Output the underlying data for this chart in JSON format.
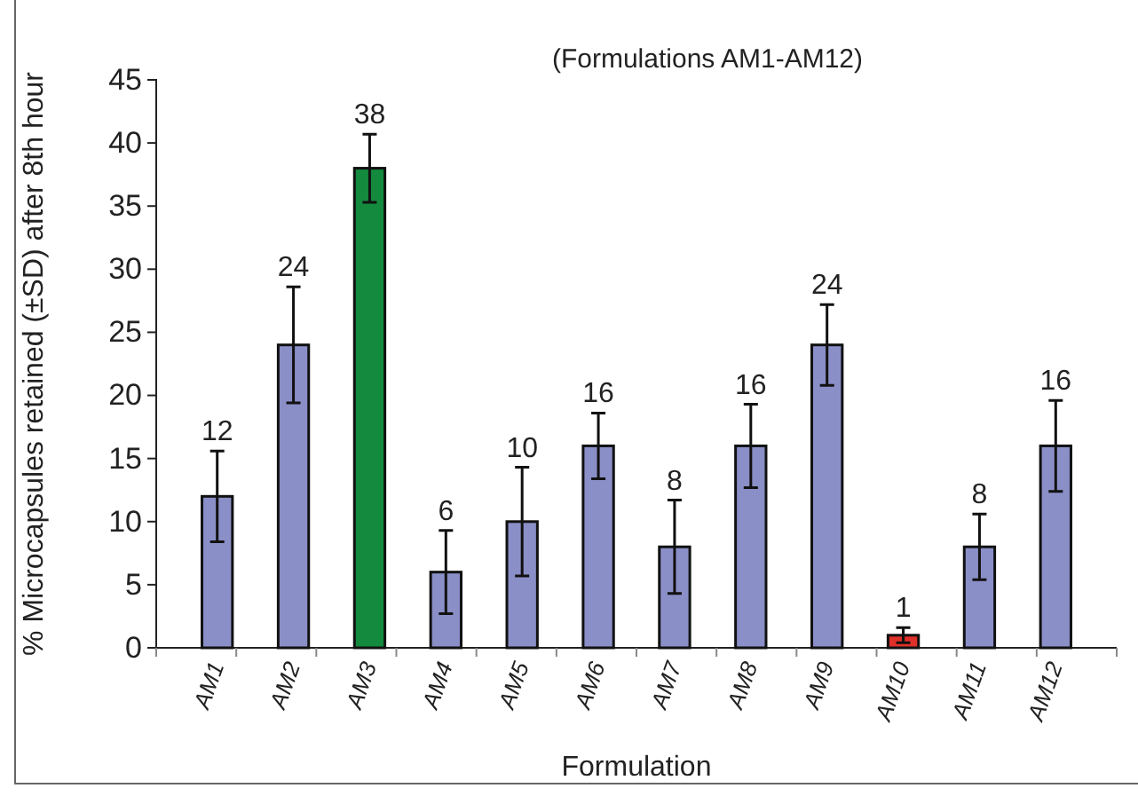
{
  "chart_data": {
    "type": "bar",
    "title": "(Formulations AM1-AM12)",
    "xlabel": "Formulation",
    "ylabel": "% Microcapsules retained (±SD) after 8th hour",
    "categories": [
      "AM1",
      "AM2",
      "AM3",
      "AM4",
      "AM5",
      "AM6",
      "AM7",
      "AM8",
      "AM9",
      "AM10",
      "AM11",
      "AM12"
    ],
    "values": [
      12,
      24,
      38,
      6,
      10,
      16,
      8,
      16,
      24,
      1,
      8,
      16
    ],
    "errors": [
      3.6,
      4.6,
      2.7,
      3.3,
      4.3,
      2.6,
      3.7,
      3.3,
      3.2,
      0.6,
      2.6,
      3.6
    ],
    "colors": [
      "#8a8fc8",
      "#8a8fc8",
      "#138a3e",
      "#8a8fc8",
      "#8a8fc8",
      "#8a8fc8",
      "#8a8fc8",
      "#8a8fc8",
      "#8a8fc8",
      "#e0302a",
      "#8a8fc8",
      "#8a8fc8"
    ],
    "ylim": [
      0,
      45
    ],
    "yticks": [
      0,
      5,
      10,
      15,
      20,
      25,
      30,
      35,
      40,
      45
    ],
    "data_labels": true
  }
}
